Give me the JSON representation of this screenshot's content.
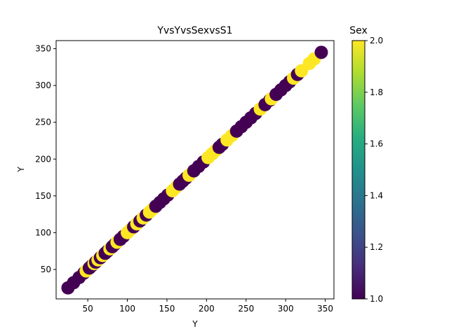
{
  "chart_data": {
    "type": "scatter",
    "title": "YvsYvsSexvsS1",
    "xlabel": "Y",
    "ylabel": "Y",
    "xlim": [
      10,
      361
    ],
    "ylim": [
      10,
      361
    ],
    "xticks": [
      50,
      100,
      150,
      200,
      250,
      300,
      350
    ],
    "yticks": [
      50,
      100,
      150,
      200,
      250,
      300,
      350
    ],
    "grid": false,
    "colorbar": {
      "label": "Sex",
      "min": 1.0,
      "max": 2.0,
      "ticks": [
        "1.0",
        "1.2",
        "1.4",
        "1.6",
        "1.8",
        "2.0"
      ],
      "colormap": "viridis",
      "low_color": "#440154",
      "high_color": "#fde725"
    },
    "points": [
      {
        "x": 25,
        "y": 25,
        "c": 1
      },
      {
        "x": 32,
        "y": 32,
        "c": 1
      },
      {
        "x": 39,
        "y": 39,
        "c": 1
      },
      {
        "x": 45,
        "y": 45,
        "c": 1
      },
      {
        "x": 48,
        "y": 48,
        "c": 2
      },
      {
        "x": 52,
        "y": 52,
        "c": 1
      },
      {
        "x": 55,
        "y": 55,
        "c": 1
      },
      {
        "x": 58,
        "y": 58,
        "c": 2
      },
      {
        "x": 60,
        "y": 60,
        "c": 1
      },
      {
        "x": 63,
        "y": 63,
        "c": 2
      },
      {
        "x": 66,
        "y": 66,
        "c": 1
      },
      {
        "x": 69,
        "y": 69,
        "c": 2
      },
      {
        "x": 72,
        "y": 72,
        "c": 1
      },
      {
        "x": 75,
        "y": 75,
        "c": 1
      },
      {
        "x": 78,
        "y": 78,
        "c": 2
      },
      {
        "x": 81,
        "y": 81,
        "c": 1
      },
      {
        "x": 84,
        "y": 84,
        "c": 1
      },
      {
        "x": 87,
        "y": 87,
        "c": 2
      },
      {
        "x": 91,
        "y": 91,
        "c": 1
      },
      {
        "x": 95,
        "y": 95,
        "c": 1
      },
      {
        "x": 100,
        "y": 100,
        "c": 2
      },
      {
        "x": 104,
        "y": 104,
        "c": 2
      },
      {
        "x": 108,
        "y": 108,
        "c": 1
      },
      {
        "x": 112,
        "y": 112,
        "c": 2
      },
      {
        "x": 116,
        "y": 116,
        "c": 1
      },
      {
        "x": 120,
        "y": 120,
        "c": 2
      },
      {
        "x": 124,
        "y": 124,
        "c": 1
      },
      {
        "x": 128,
        "y": 128,
        "c": 2
      },
      {
        "x": 132,
        "y": 132,
        "c": 2
      },
      {
        "x": 136,
        "y": 136,
        "c": 1
      },
      {
        "x": 141,
        "y": 141,
        "c": 1
      },
      {
        "x": 146,
        "y": 146,
        "c": 1
      },
      {
        "x": 151,
        "y": 151,
        "c": 1
      },
      {
        "x": 157,
        "y": 157,
        "c": 2
      },
      {
        "x": 162,
        "y": 162,
        "c": 2
      },
      {
        "x": 166,
        "y": 166,
        "c": 1
      },
      {
        "x": 170,
        "y": 170,
        "c": 1
      },
      {
        "x": 174,
        "y": 174,
        "c": 1
      },
      {
        "x": 178,
        "y": 178,
        "c": 2
      },
      {
        "x": 184,
        "y": 184,
        "c": 1
      },
      {
        "x": 190,
        "y": 190,
        "c": 1
      },
      {
        "x": 196,
        "y": 196,
        "c": 1
      },
      {
        "x": 202,
        "y": 202,
        "c": 2
      },
      {
        "x": 207,
        "y": 207,
        "c": 2
      },
      {
        "x": 212,
        "y": 212,
        "c": 2
      },
      {
        "x": 216,
        "y": 216,
        "c": 1
      },
      {
        "x": 220,
        "y": 220,
        "c": 1
      },
      {
        "x": 226,
        "y": 226,
        "c": 2
      },
      {
        "x": 232,
        "y": 232,
        "c": 2
      },
      {
        "x": 238,
        "y": 238,
        "c": 1
      },
      {
        "x": 244,
        "y": 244,
        "c": 1
      },
      {
        "x": 250,
        "y": 250,
        "c": 1
      },
      {
        "x": 256,
        "y": 256,
        "c": 1
      },
      {
        "x": 262,
        "y": 262,
        "c": 1
      },
      {
        "x": 268,
        "y": 268,
        "c": 2
      },
      {
        "x": 274,
        "y": 274,
        "c": 1
      },
      {
        "x": 280,
        "y": 280,
        "c": 1
      },
      {
        "x": 282,
        "y": 282,
        "c": 2
      },
      {
        "x": 288,
        "y": 288,
        "c": 1
      },
      {
        "x": 294,
        "y": 294,
        "c": 1
      },
      {
        "x": 300,
        "y": 300,
        "c": 1
      },
      {
        "x": 305,
        "y": 305,
        "c": 1
      },
      {
        "x": 310,
        "y": 310,
        "c": 2
      },
      {
        "x": 315,
        "y": 315,
        "c": 1
      },
      {
        "x": 320,
        "y": 320,
        "c": 2
      },
      {
        "x": 330,
        "y": 330,
        "c": 2
      },
      {
        "x": 336,
        "y": 336,
        "c": 2
      },
      {
        "x": 345,
        "y": 345,
        "c": 1
      }
    ]
  }
}
